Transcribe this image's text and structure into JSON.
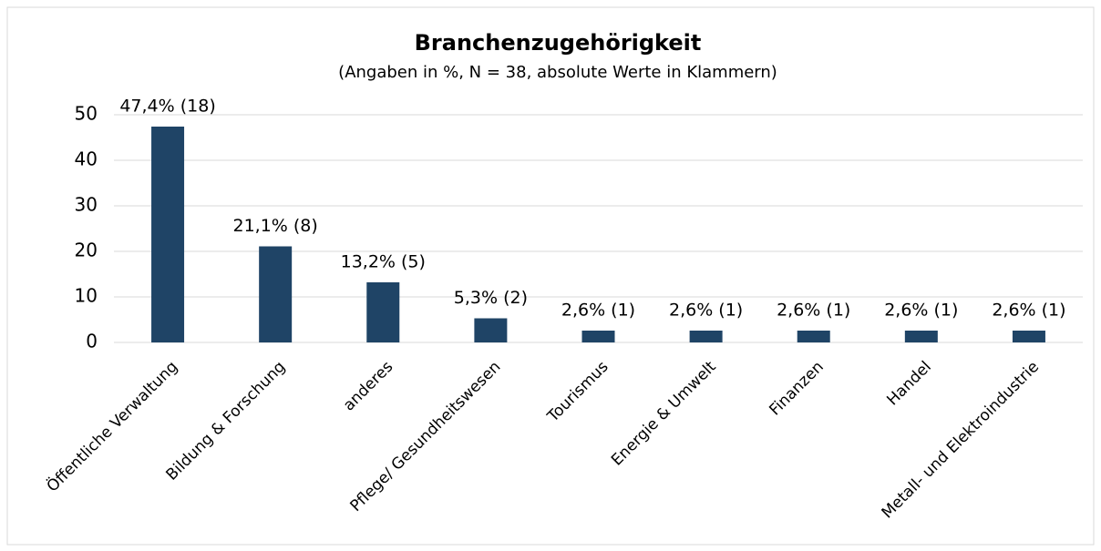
{
  "chart_data": {
    "type": "bar",
    "title": "Branchenzugehörigkeit",
    "subtitle": "(Angaben in %, N = 38, absolute Werte in Klammern)",
    "categories": [
      "Öffentliche Verwaltung",
      "Bildung & Forschung",
      "anderes",
      "Pflege/ Gesundheitswesen",
      "Tourismus",
      "Energie & Umwelt",
      "Finanzen",
      "Handel",
      "Metall- und Elektroindustrie"
    ],
    "values": [
      47.4,
      21.1,
      13.2,
      5.3,
      2.6,
      2.6,
      2.6,
      2.6,
      2.6
    ],
    "value_labels": [
      "47,4% (18)",
      "21,1% (8)",
      "13,2% (5)",
      "5,3% (2)",
      "2,6% (1)",
      "2,6% (1)",
      "2,6% (1)",
      "2,6% (1)",
      "2,6% (1)"
    ],
    "color": "#1f4466",
    "ylim": [
      0,
      50
    ],
    "yticks": [
      0,
      10,
      20,
      30,
      40,
      50
    ],
    "grid": true
  }
}
